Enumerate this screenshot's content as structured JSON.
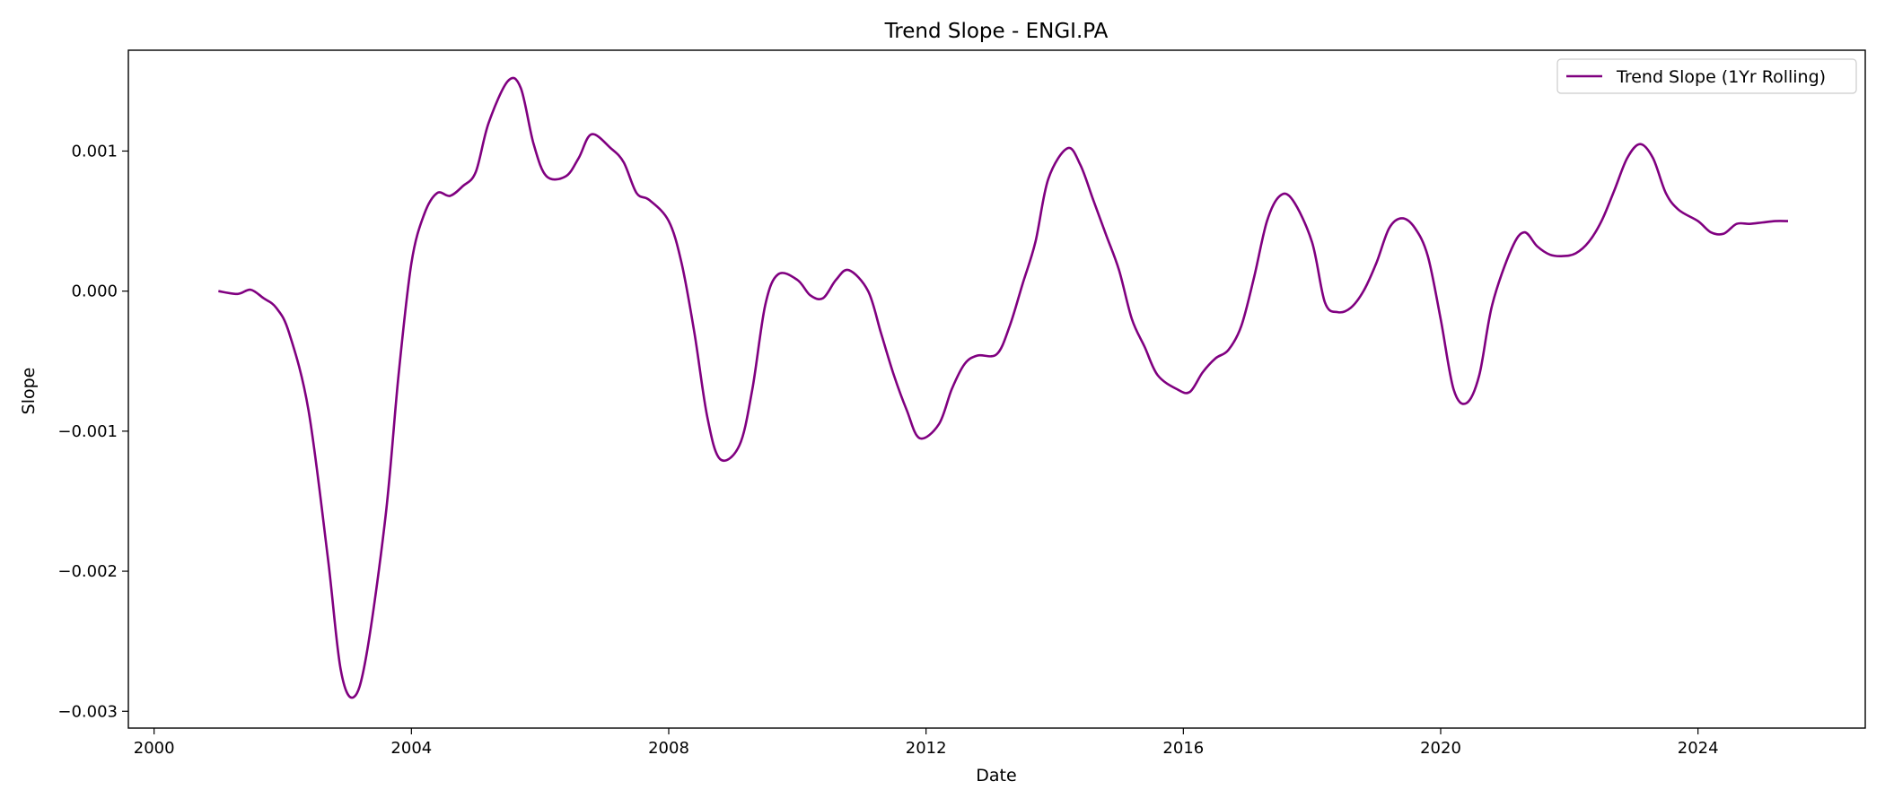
{
  "chart_data": {
    "type": "line",
    "title": "Trend Slope - ENGI.PA",
    "xlabel": "Date",
    "ylabel": "Slope",
    "xlim": [
      1999.6,
      2026.6
    ],
    "ylim": [
      -0.00312,
      0.00172
    ],
    "x_ticks": [
      2000,
      2004,
      2008,
      2012,
      2016,
      2020,
      2024
    ],
    "x_tick_labels": [
      "2000",
      "2004",
      "2008",
      "2012",
      "2016",
      "2020",
      "2024"
    ],
    "y_ticks": [
      -0.003,
      -0.002,
      -0.001,
      0.0,
      0.001
    ],
    "y_tick_labels": [
      "−0.003",
      "−0.002",
      "−0.001",
      "0.000",
      "0.001"
    ],
    "grid": false,
    "legend_position": "top-right",
    "series": [
      {
        "name": "Trend Slope (1Yr Rolling)",
        "color": "#800080",
        "x": [
          2001.0,
          2001.3,
          2001.5,
          2001.7,
          2001.9,
          2002.1,
          2002.4,
          2002.7,
          2002.9,
          2003.1,
          2003.3,
          2003.6,
          2003.8,
          2004.0,
          2004.2,
          2004.4,
          2004.6,
          2004.8,
          2005.0,
          2005.2,
          2005.5,
          2005.7,
          2005.9,
          2006.1,
          2006.4,
          2006.6,
          2006.8,
          2007.1,
          2007.3,
          2007.5,
          2007.7,
          2008.0,
          2008.2,
          2008.4,
          2008.6,
          2008.8,
          2009.1,
          2009.3,
          2009.5,
          2009.7,
          2010.0,
          2010.2,
          2010.4,
          2010.6,
          2010.8,
          2011.1,
          2011.3,
          2011.5,
          2011.7,
          2011.9,
          2012.2,
          2012.4,
          2012.6,
          2012.8,
          2013.1,
          2013.3,
          2013.5,
          2013.7,
          2013.9,
          2014.2,
          2014.4,
          2014.6,
          2014.8,
          2015.0,
          2015.2,
          2015.4,
          2015.6,
          2015.9,
          2016.1,
          2016.3,
          2016.5,
          2016.7,
          2016.9,
          2017.1,
          2017.3,
          2017.5,
          2017.7,
          2018.0,
          2018.2,
          2018.4,
          2018.6,
          2018.8,
          2019.0,
          2019.2,
          2019.4,
          2019.6,
          2019.8,
          2020.0,
          2020.2,
          2020.4,
          2020.6,
          2020.8,
          2021.1,
          2021.3,
          2021.5,
          2021.7,
          2021.9,
          2022.1,
          2022.3,
          2022.5,
          2022.7,
          2022.9,
          2023.1,
          2023.3,
          2023.5,
          2023.7,
          2024.0,
          2024.2,
          2024.4,
          2024.6,
          2024.8,
          2025.0,
          2025.2,
          2025.4
        ],
        "y": [
          0.0,
          -2e-05,
          1e-05,
          -5e-05,
          -0.00012,
          -0.0003,
          -0.00085,
          -0.0019,
          -0.0027,
          -0.0029,
          -0.0026,
          -0.0016,
          -0.0006,
          0.0002,
          0.00055,
          0.0007,
          0.00068,
          0.00075,
          0.00085,
          0.0012,
          0.0015,
          0.00145,
          0.00105,
          0.00082,
          0.00082,
          0.00095,
          0.00112,
          0.00102,
          0.00092,
          0.0007,
          0.00065,
          0.0005,
          0.0002,
          -0.0003,
          -0.0009,
          -0.0012,
          -0.0011,
          -0.0007,
          -0.0001,
          0.00012,
          8e-05,
          -3e-05,
          -5e-05,
          8e-05,
          0.00015,
          0.0,
          -0.0003,
          -0.0006,
          -0.00085,
          -0.00105,
          -0.00095,
          -0.0007,
          -0.00052,
          -0.00046,
          -0.00045,
          -0.00025,
          5e-05,
          0.00035,
          0.0008,
          0.00102,
          0.0009,
          0.00065,
          0.0004,
          0.00015,
          -0.0002,
          -0.0004,
          -0.0006,
          -0.0007,
          -0.00072,
          -0.00058,
          -0.00048,
          -0.00042,
          -0.00025,
          0.0001,
          0.0005,
          0.00068,
          0.00065,
          0.00035,
          -8e-05,
          -0.00015,
          -0.00012,
          0.0,
          0.0002,
          0.00045,
          0.00052,
          0.00045,
          0.00025,
          -0.0002,
          -0.0007,
          -0.0008,
          -0.0006,
          -0.0001,
          0.0003,
          0.00042,
          0.00032,
          0.00026,
          0.00025,
          0.00027,
          0.00035,
          0.0005,
          0.00072,
          0.00095,
          0.00105,
          0.00095,
          0.0007,
          0.00058,
          0.0005,
          0.00042,
          0.00041,
          0.00048,
          0.00048,
          0.00049,
          0.0005,
          0.0005
        ]
      }
    ]
  }
}
